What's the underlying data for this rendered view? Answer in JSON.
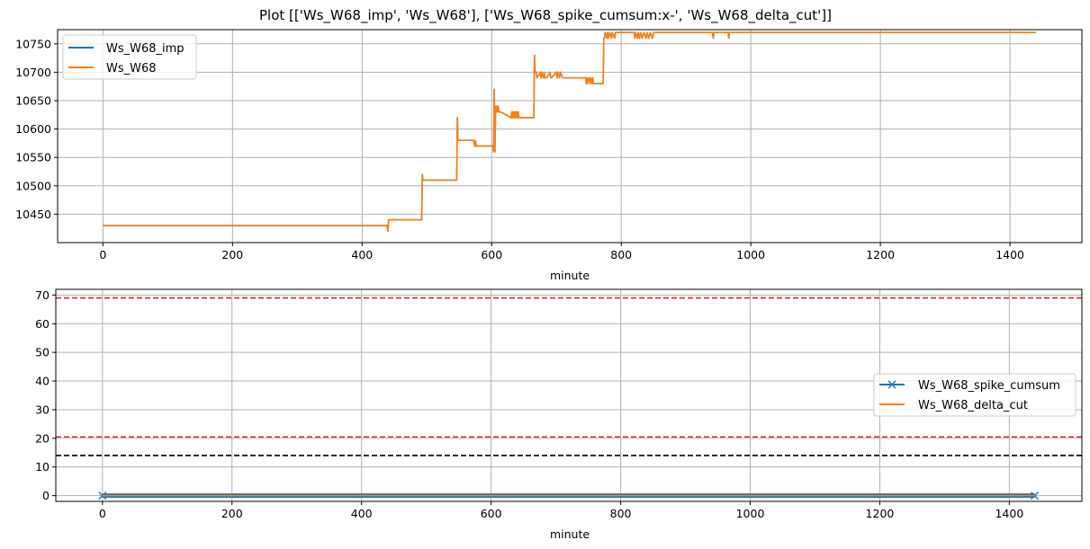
{
  "figure": {
    "title": "Plot [['Ws_W68_imp', 'Ws_W68'], ['Ws_W68_spike_cumsum:x-', 'Ws_W68_delta_cut']]"
  },
  "colors": {
    "blue": "#1f77b4",
    "orange": "#ff7f0e",
    "red_dashed": "#d62728",
    "black_dashed": "#000000",
    "grid": "#b0b0b0"
  },
  "chart_data": [
    {
      "type": "line",
      "title": "",
      "xlabel": "minute",
      "ylabel": "",
      "xlim": [
        -70,
        1511
      ],
      "ylim": [
        10400,
        10775
      ],
      "x_ticks": [
        0,
        200,
        400,
        600,
        800,
        1000,
        1200,
        1400
      ],
      "y_ticks": [
        10450,
        10500,
        10550,
        10600,
        10650,
        10700,
        10750
      ],
      "grid": true,
      "legend_position": "top-left",
      "series": [
        {
          "name": "Ws_W68_imp",
          "color": "#1f77b4",
          "x": [
            0,
            300,
            305,
            438,
            440,
            441,
            442,
            492,
            493,
            494,
            495,
            546,
            547,
            548,
            549,
            572,
            573,
            574,
            575,
            576,
            577,
            578,
            602,
            603,
            604,
            605,
            606,
            607,
            608,
            609,
            610,
            611,
            612,
            613,
            614,
            630,
            631,
            632,
            633,
            634,
            635,
            636,
            637,
            638,
            639,
            640,
            641,
            642,
            643,
            665,
            666,
            667,
            668,
            669,
            670,
            675,
            676,
            677,
            680,
            681,
            682,
            685,
            690,
            691,
            692,
            700,
            701,
            702,
            705,
            706,
            710,
            711,
            712,
            713,
            745,
            746,
            747,
            748,
            750,
            752,
            753,
            755,
            756,
            757,
            758,
            772,
            773,
            774,
            775,
            778,
            779,
            780,
            782,
            785,
            786,
            790,
            791,
            800,
            820,
            821,
            822,
            825,
            826,
            828,
            830,
            832,
            835,
            838,
            840,
            842,
            845,
            848,
            850,
            940,
            941,
            942,
            943,
            964,
            965,
            966,
            967,
            1440
          ],
          "y": [
            10430,
            10430,
            10430,
            10430,
            10420,
            10440,
            10440,
            10440,
            10520,
            10510,
            10510,
            10510,
            10620,
            10580,
            10580,
            10580,
            10575,
            10570,
            10580,
            10570,
            10570,
            10570,
            10570,
            10560,
            10670,
            10560,
            10640,
            10630,
            10640,
            10630,
            10640,
            10630,
            10630,
            10630,
            10630,
            10620,
            10630,
            10620,
            10630,
            10620,
            10630,
            10620,
            10630,
            10620,
            10630,
            10620,
            10630,
            10620,
            10620,
            10620,
            10730,
            10700,
            10700,
            10700,
            10690,
            10700,
            10690,
            10700,
            10690,
            10700,
            10690,
            10690,
            10700,
            10690,
            10690,
            10700,
            10690,
            10700,
            10690,
            10700,
            10690,
            10690,
            10690,
            10690,
            10690,
            10680,
            10690,
            10680,
            10690,
            10680,
            10690,
            10680,
            10690,
            10680,
            10680,
            10680,
            10760,
            10760,
            10770,
            10760,
            10770,
            10760,
            10770,
            10760,
            10770,
            10760,
            10770,
            10770,
            10770,
            10760,
            10770,
            10760,
            10770,
            10760,
            10770,
            10760,
            10770,
            10760,
            10770,
            10760,
            10770,
            10760,
            10770,
            10770,
            10770,
            10760,
            10770,
            10770,
            10770,
            10760,
            10770,
            10770
          ]
        },
        {
          "name": "Ws_W68",
          "color": "#ff7f0e",
          "x": [
            0,
            300,
            305,
            438,
            440,
            441,
            442,
            492,
            493,
            494,
            495,
            546,
            547,
            548,
            549,
            572,
            573,
            574,
            575,
            576,
            577,
            578,
            602,
            603,
            604,
            605,
            606,
            607,
            608,
            609,
            610,
            611,
            612,
            613,
            614,
            630,
            631,
            632,
            633,
            634,
            635,
            636,
            637,
            638,
            639,
            640,
            641,
            642,
            643,
            665,
            666,
            667,
            668,
            669,
            670,
            675,
            676,
            677,
            680,
            681,
            682,
            685,
            690,
            691,
            692,
            700,
            701,
            702,
            705,
            706,
            710,
            711,
            712,
            713,
            745,
            746,
            747,
            748,
            750,
            752,
            753,
            755,
            756,
            757,
            758,
            772,
            773,
            774,
            775,
            778,
            779,
            780,
            782,
            785,
            786,
            790,
            791,
            800,
            820,
            821,
            822,
            825,
            826,
            828,
            830,
            832,
            835,
            838,
            840,
            842,
            845,
            848,
            850,
            940,
            941,
            942,
            943,
            964,
            965,
            966,
            967,
            1440
          ],
          "y": [
            10430,
            10430,
            10430,
            10430,
            10420,
            10440,
            10440,
            10440,
            10520,
            10510,
            10510,
            10510,
            10620,
            10580,
            10580,
            10580,
            10575,
            10570,
            10580,
            10570,
            10570,
            10570,
            10570,
            10560,
            10670,
            10560,
            10640,
            10630,
            10640,
            10630,
            10640,
            10630,
            10630,
            10630,
            10630,
            10620,
            10630,
            10620,
            10630,
            10620,
            10630,
            10620,
            10630,
            10620,
            10630,
            10620,
            10630,
            10620,
            10620,
            10620,
            10730,
            10700,
            10700,
            10700,
            10690,
            10700,
            10690,
            10700,
            10690,
            10700,
            10690,
            10690,
            10700,
            10690,
            10690,
            10700,
            10690,
            10700,
            10690,
            10700,
            10690,
            10690,
            10690,
            10690,
            10690,
            10680,
            10690,
            10680,
            10690,
            10680,
            10690,
            10680,
            10690,
            10680,
            10680,
            10680,
            10760,
            10760,
            10770,
            10760,
            10770,
            10760,
            10770,
            10760,
            10770,
            10760,
            10770,
            10770,
            10770,
            10760,
            10770,
            10760,
            10770,
            10760,
            10770,
            10760,
            10770,
            10760,
            10770,
            10760,
            10770,
            10760,
            10770,
            10770,
            10770,
            10760,
            10770,
            10770,
            10770,
            10760,
            10770,
            10770
          ]
        }
      ]
    },
    {
      "type": "line",
      "title": "",
      "xlabel": "minute",
      "ylabel": "",
      "xlim": [
        -72,
        1512
      ],
      "ylim": [
        -2,
        72
      ],
      "x_ticks": [
        0,
        200,
        400,
        600,
        800,
        1000,
        1200,
        1400
      ],
      "y_ticks": [
        0,
        10,
        20,
        30,
        40,
        50,
        60,
        70
      ],
      "grid": true,
      "legend_position": "center-right",
      "series": [
        {
          "name": "Ws_W68_spike_cumsum",
          "color": "#1f77b4",
          "marker": "x",
          "x_range": [
            0,
            1439
          ],
          "constant_value": 0
        },
        {
          "name": "Ws_W68_delta_cut",
          "color": "#ff7f0e",
          "x_range": [
            0,
            1439
          ],
          "constant_value": 0
        }
      ],
      "hlines": [
        {
          "y": 69,
          "color": "#d62728",
          "style": "dashed"
        },
        {
          "y": 20.5,
          "color": "#d62728",
          "style": "dashed"
        },
        {
          "y": 14,
          "color": "#000000",
          "style": "dashed"
        }
      ]
    }
  ]
}
